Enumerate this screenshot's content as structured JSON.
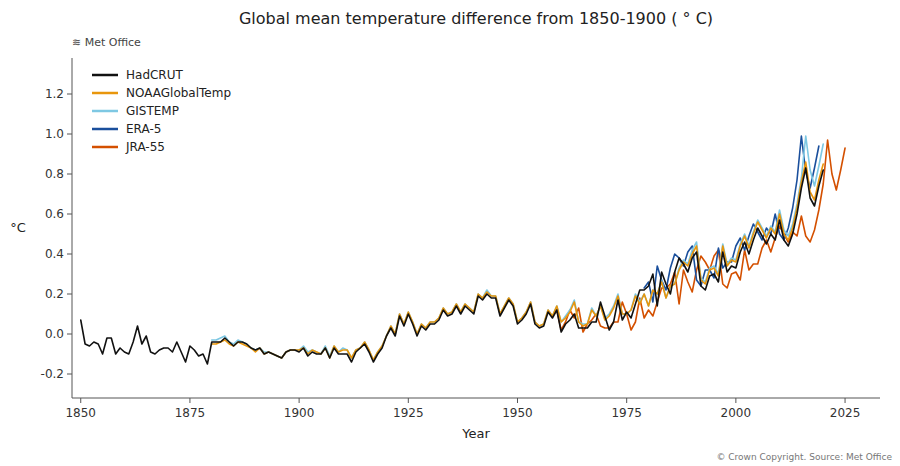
{
  "chart_data": {
    "type": "line",
    "title": "Global mean temperature difference from 1850-1900 ( ° C)",
    "x_label": "Year",
    "y_label": "°C",
    "annotations": [
      "≋ Met Office",
      "© Crown Copyright. Source: Met Office"
    ],
    "xlim": [
      1848,
      2033
    ],
    "ylim": [
      -0.32,
      1.38
    ],
    "xticks": [
      1850,
      1875,
      1900,
      1925,
      1950,
      1975,
      2000,
      2025
    ],
    "yticks": [
      -0.2,
      {
        "value": 0.0,
        "label": "0.0"
      },
      0.2,
      0.4,
      0.6,
      0.8,
      {
        "value": 1.0,
        "label": "1.0"
      },
      1.2
    ],
    "grid": false,
    "legend": "upper left",
    "series": [
      {
        "name": "HadCRUT",
        "color": "#111111",
        "x": [
          1850,
          1851,
          1852,
          1853,
          1854,
          1855,
          1856,
          1857,
          1858,
          1859,
          1860,
          1861,
          1862,
          1863,
          1864,
          1865,
          1866,
          1867,
          1868,
          1869,
          1870,
          1871,
          1872,
          1873,
          1874,
          1875,
          1876,
          1877,
          1878,
          1879,
          1880,
          1881,
          1882,
          1883,
          1884,
          1885,
          1886,
          1887,
          1888,
          1889,
          1890,
          1891,
          1892,
          1893,
          1894,
          1895,
          1896,
          1897,
          1898,
          1899,
          1900,
          1901,
          1902,
          1903,
          1904,
          1905,
          1906,
          1907,
          1908,
          1909,
          1910,
          1911,
          1912,
          1913,
          1914,
          1915,
          1916,
          1917,
          1918,
          1919,
          1920,
          1921,
          1922,
          1923,
          1924,
          1925,
          1926,
          1927,
          1928,
          1929,
          1930,
          1931,
          1932,
          1933,
          1934,
          1935,
          1936,
          1937,
          1938,
          1939,
          1940,
          1941,
          1942,
          1943,
          1944,
          1945,
          1946,
          1947,
          1948,
          1949,
          1950,
          1951,
          1952,
          1953,
          1954,
          1955,
          1956,
          1957,
          1958,
          1959,
          1960,
          1961,
          1962,
          1963,
          1964,
          1965,
          1966,
          1967,
          1968,
          1969,
          1970,
          1971,
          1972,
          1973,
          1974,
          1975,
          1976,
          1977,
          1978,
          1979,
          1980,
          1981,
          1982,
          1983,
          1984,
          1985,
          1986,
          1987,
          1988,
          1989,
          1990,
          1991,
          1992,
          1993,
          1994,
          1995,
          1996,
          1997,
          1998,
          1999,
          2000,
          2001,
          2002,
          2003,
          2004,
          2005,
          2006,
          2007,
          2008,
          2009,
          2010,
          2011,
          2012,
          2013,
          2014,
          2015,
          2016,
          2017,
          2018,
          2019,
          2020
        ],
        "values": [
          0.07,
          -0.05,
          -0.06,
          -0.04,
          -0.05,
          -0.1,
          -0.02,
          -0.02,
          -0.1,
          -0.07,
          -0.09,
          -0.1,
          -0.04,
          0.04,
          -0.05,
          -0.01,
          -0.09,
          -0.1,
          -0.08,
          -0.07,
          -0.07,
          -0.09,
          -0.04,
          -0.09,
          -0.14,
          -0.06,
          -0.08,
          -0.11,
          -0.1,
          -0.15,
          -0.04,
          -0.04,
          -0.04,
          -0.02,
          -0.04,
          -0.06,
          -0.04,
          -0.04,
          -0.05,
          -0.07,
          -0.08,
          -0.07,
          -0.1,
          -0.09,
          -0.1,
          -0.11,
          -0.12,
          -0.09,
          -0.08,
          -0.08,
          -0.09,
          -0.07,
          -0.11,
          -0.09,
          -0.1,
          -0.1,
          -0.07,
          -0.12,
          -0.07,
          -0.1,
          -0.1,
          -0.1,
          -0.14,
          -0.09,
          -0.07,
          -0.05,
          -0.09,
          -0.14,
          -0.1,
          -0.07,
          -0.01,
          0.03,
          -0.01,
          0.09,
          0.04,
          0.1,
          0.05,
          -0.01,
          0.04,
          0.02,
          0.05,
          0.05,
          0.07,
          0.12,
          0.09,
          0.1,
          0.14,
          0.1,
          0.14,
          0.12,
          0.1,
          0.19,
          0.17,
          0.2,
          0.18,
          0.18,
          0.09,
          0.13,
          0.17,
          0.14,
          0.05,
          0.07,
          0.1,
          0.15,
          0.05,
          0.03,
          0.04,
          0.11,
          0.08,
          0.12,
          0.01,
          0.05,
          0.07,
          0.1,
          0.03,
          0.03,
          0.03,
          0.06,
          0.06,
          0.16,
          0.09,
          0.02,
          0.06,
          0.17,
          0.07,
          0.11,
          0.08,
          0.15,
          0.22,
          0.22,
          0.24,
          0.3,
          0.14,
          0.31,
          0.25,
          0.2,
          0.31,
          0.38,
          0.35,
          0.31,
          0.38,
          0.41,
          0.24,
          0.22,
          0.29,
          0.3,
          0.26,
          0.41,
          0.31,
          0.34,
          0.33,
          0.41,
          0.46,
          0.4,
          0.47,
          0.53,
          0.49,
          0.45,
          0.5,
          0.47,
          0.57,
          0.47,
          0.44,
          0.5,
          0.6,
          0.73,
          0.83,
          0.68,
          0.64,
          0.74,
          0.82
        ]
      },
      {
        "name": "NOAAGlobalTemp",
        "color": "#e8960c",
        "x": [
          1880,
          1881,
          1882,
          1883,
          1884,
          1885,
          1886,
          1887,
          1888,
          1889,
          1890,
          1891,
          1892,
          1893,
          1894,
          1895,
          1896,
          1897,
          1898,
          1899,
          1900,
          1901,
          1902,
          1903,
          1904,
          1905,
          1906,
          1907,
          1908,
          1909,
          1910,
          1911,
          1912,
          1913,
          1914,
          1915,
          1916,
          1917,
          1918,
          1919,
          1920,
          1921,
          1922,
          1923,
          1924,
          1925,
          1926,
          1927,
          1928,
          1929,
          1930,
          1931,
          1932,
          1933,
          1934,
          1935,
          1936,
          1937,
          1938,
          1939,
          1940,
          1941,
          1942,
          1943,
          1944,
          1945,
          1946,
          1947,
          1948,
          1949,
          1950,
          1951,
          1952,
          1953,
          1954,
          1955,
          1956,
          1957,
          1958,
          1959,
          1960,
          1961,
          1962,
          1963,
          1964,
          1965,
          1966,
          1967,
          1968,
          1969,
          1970,
          1971,
          1972,
          1973,
          1974,
          1975,
          1976,
          1977,
          1978,
          1979,
          1980,
          1981,
          1982,
          1983,
          1984,
          1985,
          1986,
          1987,
          1988,
          1989,
          1990,
          1991,
          1992,
          1993,
          1994,
          1995,
          1996,
          1997,
          1998,
          1999,
          2000,
          2001,
          2002,
          2003,
          2004,
          2005,
          2006,
          2007,
          2008,
          2009,
          2010,
          2011,
          2012,
          2013,
          2014,
          2015,
          2016,
          2017,
          2018,
          2019,
          2020
        ],
        "values": [
          -0.05,
          -0.05,
          -0.04,
          -0.03,
          -0.05,
          -0.06,
          -0.04,
          -0.05,
          -0.06,
          -0.07,
          -0.09,
          -0.07,
          -0.1,
          -0.09,
          -0.1,
          -0.11,
          -0.12,
          -0.09,
          -0.08,
          -0.08,
          -0.08,
          -0.07,
          -0.1,
          -0.08,
          -0.09,
          -0.1,
          -0.07,
          -0.12,
          -0.06,
          -0.09,
          -0.08,
          -0.08,
          -0.12,
          -0.08,
          -0.07,
          -0.04,
          -0.08,
          -0.13,
          -0.09,
          -0.06,
          -0.01,
          0.04,
          0.0,
          0.1,
          0.05,
          0.11,
          0.06,
          0.0,
          0.05,
          0.03,
          0.06,
          0.06,
          0.08,
          0.13,
          0.1,
          0.11,
          0.15,
          0.11,
          0.15,
          0.13,
          0.11,
          0.2,
          0.18,
          0.21,
          0.19,
          0.19,
          0.1,
          0.14,
          0.18,
          0.15,
          0.06,
          0.08,
          0.11,
          0.16,
          0.06,
          0.04,
          0.05,
          0.12,
          0.09,
          0.14,
          0.06,
          0.08,
          0.11,
          0.16,
          0.06,
          0.04,
          0.05,
          0.12,
          0.09,
          0.14,
          0.07,
          0.09,
          0.13,
          0.19,
          0.1,
          0.1,
          0.12,
          0.19,
          0.15,
          0.2,
          0.14,
          0.22,
          0.2,
          0.26,
          0.18,
          0.24,
          0.25,
          0.32,
          0.36,
          0.34,
          0.4,
          0.44,
          0.27,
          0.25,
          0.32,
          0.33,
          0.29,
          0.44,
          0.34,
          0.37,
          0.36,
          0.44,
          0.49,
          0.43,
          0.5,
          0.56,
          0.52,
          0.48,
          0.53,
          0.5,
          0.6,
          0.5,
          0.47,
          0.53,
          0.63,
          0.76,
          0.86,
          0.71,
          0.67,
          0.77,
          0.85
        ]
      },
      {
        "name": "GISTEMP",
        "color": "#7ec8e3",
        "x": [
          1880,
          1881,
          1882,
          1883,
          1884,
          1885,
          1886,
          1887,
          1888,
          1889,
          1890,
          1891,
          1892,
          1893,
          1894,
          1895,
          1896,
          1897,
          1898,
          1899,
          1900,
          1901,
          1902,
          1903,
          1904,
          1905,
          1906,
          1907,
          1908,
          1909,
          1910,
          1911,
          1912,
          1913,
          1914,
          1915,
          1916,
          1917,
          1918,
          1919,
          1920,
          1921,
          1922,
          1923,
          1924,
          1925,
          1926,
          1927,
          1928,
          1929,
          1930,
          1931,
          1932,
          1933,
          1934,
          1935,
          1936,
          1937,
          1938,
          1939,
          1940,
          1941,
          1942,
          1943,
          1944,
          1945,
          1946,
          1947,
          1948,
          1949,
          1950,
          1951,
          1952,
          1953,
          1954,
          1955,
          1956,
          1957,
          1958,
          1959,
          1960,
          1961,
          1962,
          1963,
          1964,
          1965,
          1966,
          1967,
          1968,
          1969,
          1970,
          1971,
          1972,
          1973,
          1974,
          1975,
          1976,
          1977,
          1978,
          1979,
          1980,
          1981,
          1982,
          1983,
          1984,
          1985,
          1986,
          1987,
          1988,
          1989,
          1990,
          1991,
          1992,
          1993,
          1994,
          1995,
          1996,
          1997,
          1998,
          1999,
          2000,
          2001,
          2002,
          2003,
          2004,
          2005,
          2006,
          2007,
          2008,
          2009,
          2010,
          2011,
          2012,
          2013,
          2014,
          2015,
          2016,
          2017,
          2018,
          2019,
          2020
        ],
        "values": [
          -0.03,
          -0.03,
          -0.02,
          -0.01,
          -0.04,
          -0.05,
          -0.03,
          -0.04,
          -0.05,
          -0.07,
          -0.08,
          -0.07,
          -0.09,
          -0.09,
          -0.1,
          -0.11,
          -0.12,
          -0.09,
          -0.08,
          -0.08,
          -0.08,
          -0.06,
          -0.09,
          -0.08,
          -0.09,
          -0.1,
          -0.06,
          -0.11,
          -0.06,
          -0.09,
          -0.07,
          -0.08,
          -0.12,
          -0.08,
          -0.07,
          -0.04,
          -0.08,
          -0.13,
          -0.09,
          -0.06,
          -0.01,
          0.04,
          0.0,
          0.1,
          0.05,
          0.11,
          0.06,
          0.0,
          0.05,
          0.03,
          0.06,
          0.06,
          0.08,
          0.13,
          0.1,
          0.11,
          0.15,
          0.11,
          0.15,
          0.13,
          0.11,
          0.2,
          0.18,
          0.22,
          0.19,
          0.19,
          0.1,
          0.14,
          0.18,
          0.15,
          0.06,
          0.08,
          0.11,
          0.16,
          0.06,
          0.04,
          0.05,
          0.12,
          0.09,
          0.14,
          0.06,
          0.09,
          0.12,
          0.17,
          0.06,
          0.05,
          0.05,
          0.13,
          0.09,
          0.14,
          0.08,
          0.1,
          0.14,
          0.2,
          0.1,
          0.1,
          0.12,
          0.2,
          0.16,
          0.2,
          0.14,
          0.22,
          0.2,
          0.27,
          0.18,
          0.24,
          0.25,
          0.33,
          0.37,
          0.35,
          0.42,
          0.46,
          0.28,
          0.26,
          0.33,
          0.34,
          0.3,
          0.45,
          0.35,
          0.38,
          0.37,
          0.45,
          0.5,
          0.44,
          0.51,
          0.57,
          0.53,
          0.49,
          0.54,
          0.51,
          0.62,
          0.52,
          0.49,
          0.55,
          0.65,
          0.78,
          0.99,
          0.82,
          0.74,
          0.84,
          0.95
        ]
      },
      {
        "name": "ERA-5",
        "color": "#1a4f9c",
        "x": [
          1979,
          1980,
          1981,
          1982,
          1983,
          1984,
          1985,
          1986,
          1987,
          1988,
          1989,
          1990,
          1991,
          1992,
          1993,
          1994,
          1995,
          1996,
          1997,
          1998,
          1999,
          2000,
          2001,
          2002,
          2003,
          2004,
          2005,
          2006,
          2007,
          2008,
          2009,
          2010,
          2011,
          2012,
          2013,
          2014,
          2015,
          2016,
          2017,
          2018,
          2019
        ],
        "values": [
          0.23,
          0.26,
          0.16,
          0.34,
          0.27,
          0.22,
          0.33,
          0.4,
          0.38,
          0.34,
          0.41,
          0.44,
          0.27,
          0.24,
          0.32,
          0.32,
          0.28,
          0.43,
          0.33,
          0.36,
          0.36,
          0.44,
          0.48,
          0.42,
          0.49,
          0.55,
          0.51,
          0.47,
          0.53,
          0.5,
          0.6,
          0.5,
          0.47,
          0.53,
          0.63,
          0.77,
          0.99,
          0.81,
          0.73,
          0.83,
          0.94
        ]
      },
      {
        "name": "JRA-55",
        "color": "#d45000",
        "x": [
          1958,
          1959,
          1960,
          1961,
          1962,
          1963,
          1964,
          1965,
          1966,
          1967,
          1968,
          1969,
          1970,
          1971,
          1972,
          1973,
          1974,
          1975,
          1976,
          1977,
          1978,
          1979,
          1980,
          1981,
          1982,
          1983,
          1984,
          1985,
          1986,
          1987,
          1988,
          1989,
          1990,
          1991,
          1992,
          1993,
          1994,
          1995,
          1996,
          1997,
          1998,
          1999,
          2000,
          2001,
          2002,
          2003,
          2004,
          2005,
          2006,
          2007,
          2008,
          2009,
          2010,
          2011,
          2012,
          2013,
          2014,
          2015,
          2016,
          2017,
          2018,
          2019,
          2020,
          2021,
          2022,
          2023,
          2024,
          2025
        ],
        "values": [
          0.09,
          0.12,
          0.02,
          0.06,
          0.12,
          0.08,
          0.13,
          0.01,
          0.05,
          0.07,
          0.1,
          0.04,
          0.03,
          0.03,
          0.06,
          0.06,
          0.16,
          0.1,
          0.02,
          0.06,
          0.18,
          0.08,
          0.12,
          0.09,
          0.16,
          0.23,
          0.23,
          0.25,
          0.31,
          0.15,
          0.32,
          0.26,
          0.21,
          0.32,
          0.39,
          0.36,
          0.32,
          0.39,
          0.42,
          0.25,
          0.23,
          0.3,
          0.31,
          0.27,
          0.42,
          0.32,
          0.35,
          0.35,
          0.43,
          0.47,
          0.41,
          0.48,
          0.54,
          0.5,
          0.46,
          0.51,
          0.49,
          0.59,
          0.49,
          0.46,
          0.52,
          0.62,
          0.75,
          0.97,
          0.8,
          0.72,
          0.82,
          0.93
        ]
      }
    ]
  }
}
